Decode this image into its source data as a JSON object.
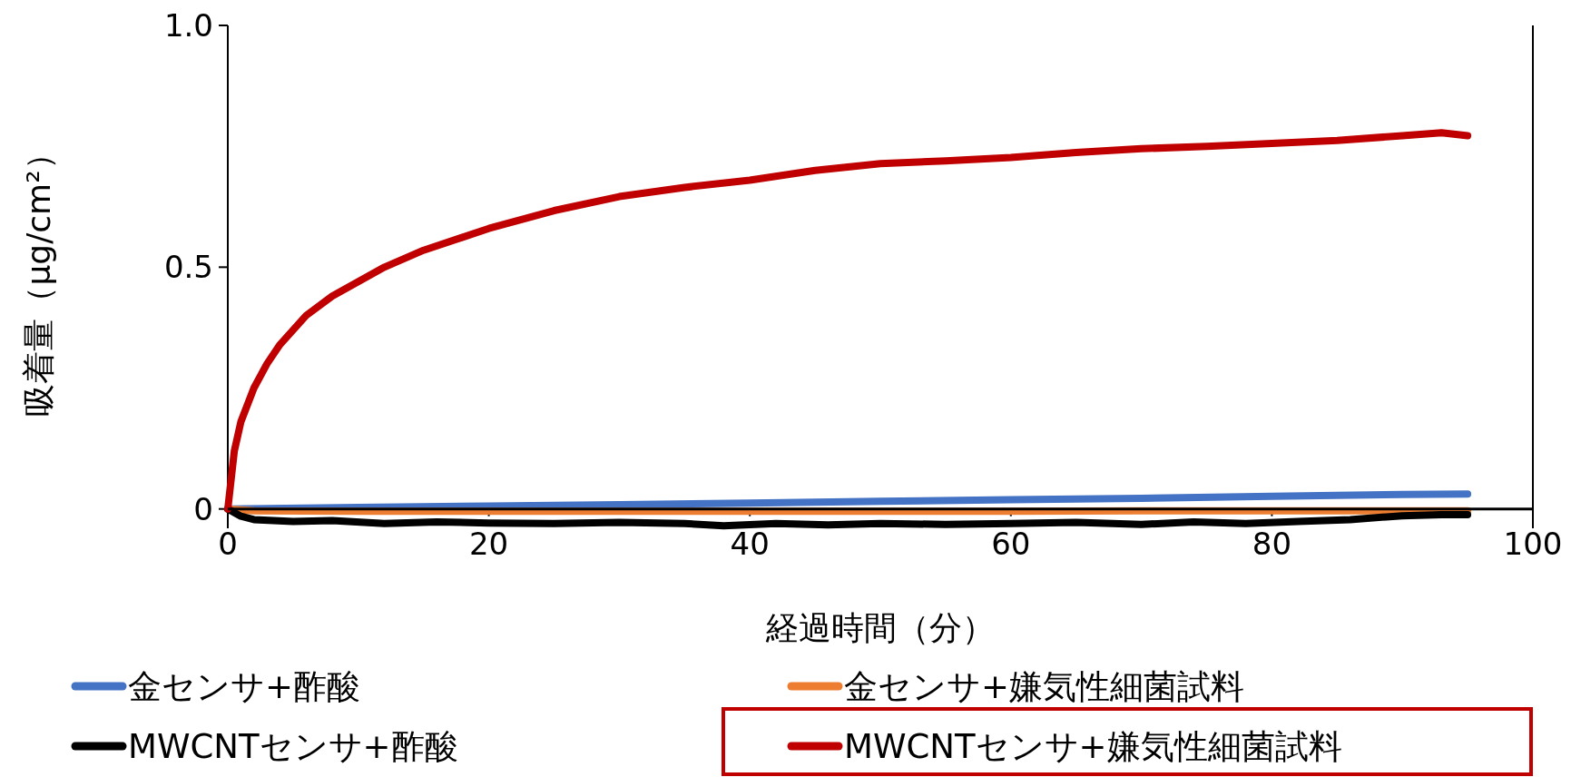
{
  "chart_data": {
    "type": "line",
    "xlabel": "経過時間（分）",
    "ylabel": "吸着量（μg/cm²）",
    "xlim": [
      0,
      100
    ],
    "ylim": [
      -0.04,
      1.0
    ],
    "xticks": [
      0,
      20,
      40,
      60,
      80,
      100
    ],
    "yticks": [
      {
        "value": 0,
        "label": "0"
      },
      0.5,
      {
        "value": 1.0,
        "label": "1.0"
      }
    ],
    "legend": "bottom",
    "grid": false,
    "series": [
      {
        "name": "金センサ+酢酸",
        "color": "#4472c4",
        "x": [
          0,
          10,
          20,
          30,
          40,
          50,
          60,
          70,
          80,
          90,
          95
        ],
        "values": [
          0,
          0.003,
          0.006,
          0.009,
          0.012,
          0.016,
          0.019,
          0.022,
          0.026,
          0.03,
          0.031
        ]
      },
      {
        "name": "金センサ+嫌気性細菌試料",
        "color": "#ed7d31",
        "x": [
          0,
          2,
          10,
          20,
          30,
          40,
          50,
          60,
          70,
          80,
          90,
          95
        ],
        "values": [
          0,
          -0.004,
          -0.005,
          -0.005,
          -0.005,
          -0.005,
          -0.005,
          -0.005,
          -0.004,
          -0.004,
          -0.004,
          -0.004
        ]
      },
      {
        "name": "MWCNTセンサ+酢酸",
        "color": "#000000",
        "x": [
          0,
          1,
          2,
          5,
          8,
          12,
          16,
          20,
          25,
          30,
          35,
          38,
          42,
          46,
          50,
          55,
          60,
          65,
          70,
          74,
          78,
          82,
          86,
          90,
          93,
          95
        ],
        "values": [
          0,
          -0.015,
          -0.022,
          -0.026,
          -0.024,
          -0.03,
          -0.027,
          -0.029,
          -0.03,
          -0.028,
          -0.03,
          -0.035,
          -0.03,
          -0.033,
          -0.03,
          -0.032,
          -0.03,
          -0.028,
          -0.032,
          -0.027,
          -0.03,
          -0.026,
          -0.022,
          -0.014,
          -0.012,
          -0.012
        ]
      },
      {
        "name": "MWCNTセンサ+嫌気性細菌試料",
        "color": "#c00000",
        "x": [
          0,
          0.5,
          1,
          2,
          3,
          4,
          5,
          6,
          8,
          10,
          12,
          15,
          20,
          25,
          30,
          35,
          40,
          45,
          50,
          55,
          60,
          65,
          70,
          75,
          80,
          85,
          90,
          93,
          95
        ],
        "values": [
          0,
          0.12,
          0.18,
          0.25,
          0.3,
          0.34,
          0.37,
          0.4,
          0.44,
          0.47,
          0.5,
          0.535,
          0.58,
          0.617,
          0.646,
          0.665,
          0.68,
          0.7,
          0.714,
          0.72,
          0.727,
          0.737,
          0.745,
          0.75,
          0.756,
          0.762,
          0.772,
          0.778,
          0.772
        ]
      }
    ]
  }
}
